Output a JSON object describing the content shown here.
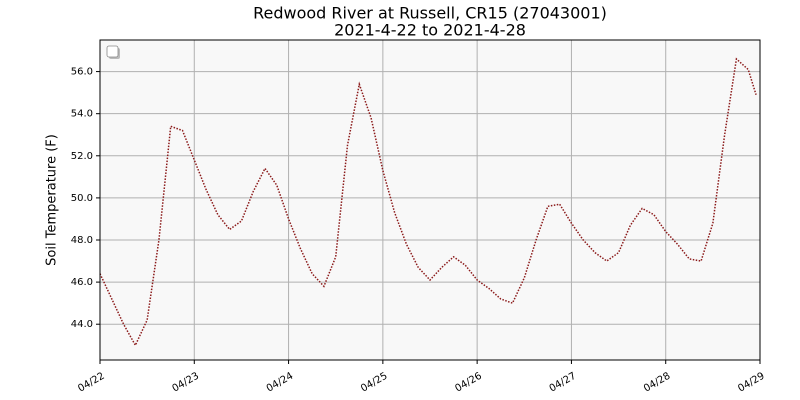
{
  "chart_data": {
    "type": "line",
    "title": "Redwood River at Russell, CR15 (27043001)",
    "subtitle": "2021-4-22 to 2021-4-28",
    "y_label": "Soil Temperature (F)",
    "x": [
      "2021-04-22T00:00",
      "2021-04-22T03:00",
      "2021-04-22T06:00",
      "2021-04-22T09:00",
      "2021-04-22T12:00",
      "2021-04-22T15:00",
      "2021-04-22T18:00",
      "2021-04-22T21:00",
      "2021-04-23T00:00",
      "2021-04-23T03:00",
      "2021-04-23T06:00",
      "2021-04-23T09:00",
      "2021-04-23T12:00",
      "2021-04-23T15:00",
      "2021-04-23T18:00",
      "2021-04-23T21:00",
      "2021-04-24T00:00",
      "2021-04-24T03:00",
      "2021-04-24T06:00",
      "2021-04-24T09:00",
      "2021-04-24T12:00",
      "2021-04-24T15:00",
      "2021-04-24T18:00",
      "2021-04-24T21:00",
      "2021-04-25T00:00",
      "2021-04-25T03:00",
      "2021-04-25T06:00",
      "2021-04-25T09:00",
      "2021-04-25T12:00",
      "2021-04-25T15:00",
      "2021-04-25T18:00",
      "2021-04-25T21:00",
      "2021-04-26T00:00",
      "2021-04-26T03:00",
      "2021-04-26T06:00",
      "2021-04-26T09:00",
      "2021-04-26T12:00",
      "2021-04-26T15:00",
      "2021-04-26T18:00",
      "2021-04-26T21:00",
      "2021-04-27T00:00",
      "2021-04-27T03:00",
      "2021-04-27T06:00",
      "2021-04-27T09:00",
      "2021-04-27T12:00",
      "2021-04-27T15:00",
      "2021-04-27T18:00",
      "2021-04-27T21:00",
      "2021-04-28T00:00",
      "2021-04-28T03:00",
      "2021-04-28T06:00",
      "2021-04-28T09:00",
      "2021-04-28T12:00",
      "2021-04-28T15:00",
      "2021-04-28T18:00",
      "2021-04-28T21:00",
      "2021-04-28T23:00"
    ],
    "series": [
      {
        "color": "#8b1a1a",
        "values": [
          46.4,
          45.2,
          44.0,
          43.0,
          44.2,
          48.0,
          53.4,
          53.2,
          51.8,
          50.4,
          49.2,
          48.5,
          48.9,
          50.3,
          51.4,
          50.6,
          49.0,
          47.6,
          46.4,
          45.8,
          47.2,
          52.5,
          55.4,
          53.8,
          51.3,
          49.3,
          47.8,
          46.7,
          46.1,
          46.7,
          47.2,
          46.8,
          46.1,
          45.7,
          45.2,
          45.0,
          46.2,
          48.0,
          49.6,
          49.7,
          48.8,
          48.0,
          47.4,
          47.0,
          47.4,
          48.7,
          49.5,
          49.2,
          48.4,
          47.8,
          47.1,
          47.0,
          48.8,
          53.0,
          56.6,
          56.1,
          54.9
        ]
      }
    ],
    "xlim": [
      "2021-04-22T00:00",
      "2021-04-29T00:00"
    ],
    "xticks": [
      {
        "value": "2021-04-22T00:00",
        "label": "04/22"
      },
      {
        "value": "2021-04-23T00:00",
        "label": "04/23"
      },
      {
        "value": "2021-04-24T00:00",
        "label": "04/24"
      },
      {
        "value": "2021-04-25T00:00",
        "label": "04/25"
      },
      {
        "value": "2021-04-26T00:00",
        "label": "04/26"
      },
      {
        "value": "2021-04-27T00:00",
        "label": "04/27"
      },
      {
        "value": "2021-04-28T00:00",
        "label": "04/28"
      },
      {
        "value": "2021-04-29T00:00",
        "label": "04/29"
      }
    ],
    "ylim": [
      42.3,
      57.5
    ],
    "yticks": [
      {
        "value": 44,
        "label": "44.0"
      },
      {
        "value": 46,
        "label": "46.0"
      },
      {
        "value": 48,
        "label": "48.0"
      },
      {
        "value": 50,
        "label": "50.0"
      },
      {
        "value": 52,
        "label": "52.0"
      },
      {
        "value": 54,
        "label": "54.0"
      },
      {
        "value": 56,
        "label": "56.0"
      }
    ],
    "grid": true
  }
}
